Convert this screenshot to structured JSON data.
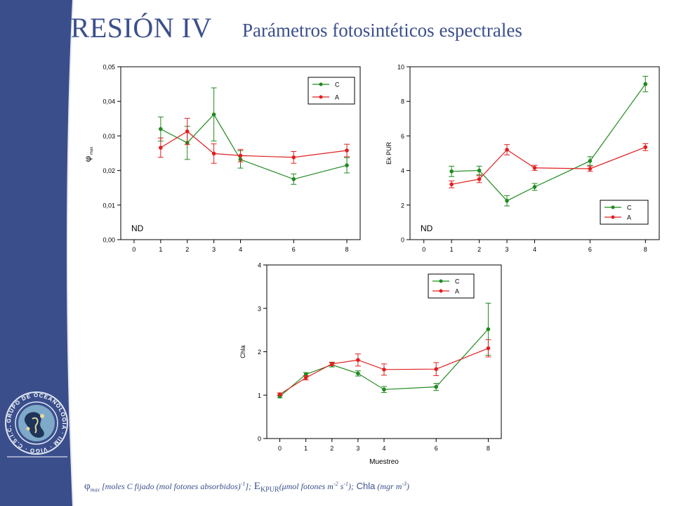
{
  "header": {
    "title": "IMPRESIÓN IV",
    "subtitle": "Parámetros fotosintéticos espectrales"
  },
  "logo": {
    "ring_text": "GRUPO DE OCEANOLOGIA · IIM · VIGO · C.S.I.C."
  },
  "footnote": {
    "phi_label": "φ",
    "phi_sub": "max",
    "phi_unit": " [moles C fijado (mol fotones absorbidos)",
    "phi_sup": "-1",
    "phi_close": "];",
    "ek_label": " E",
    "ek_sub": "KPUR",
    "ek_unit": "(μmol fotones m",
    "ek_sup1": "-2",
    "ek_mid": " s",
    "ek_sup2": "-1",
    "ek_close": ");",
    "chla_label": " Chla",
    "chla_unit": " (mgr m",
    "chla_sup": "-3",
    "chla_close": ")"
  },
  "colors": {
    "title": "#3b4f8c",
    "sidebar": "#3a4e8c",
    "series_c": "#1f8a1f",
    "series_a": "#e02020"
  },
  "chart_data": [
    {
      "type": "line",
      "title": "",
      "xlabel": "",
      "ylabel": "φ max",
      "xlim": [
        -0.5,
        8.5
      ],
      "ylim": [
        0,
        0.05
      ],
      "xticks": [
        0,
        1,
        2,
        3,
        4,
        6,
        8
      ],
      "yticks": [
        0,
        0.01,
        0.02,
        0.03,
        0.04,
        0.05
      ],
      "ytick_labels": [
        "0,00",
        "0,01",
        "0,02",
        "0,03",
        "0,04",
        "0,05"
      ],
      "grid": false,
      "legend": "top-right",
      "annotation": "ND",
      "series": [
        {
          "name": "C",
          "x": [
            1,
            2,
            3,
            4,
            6,
            8
          ],
          "y": [
            0.032,
            0.028,
            0.0362,
            0.0232,
            0.0175,
            0.0215
          ],
          "err": [
            0.0035,
            0.0048,
            0.0077,
            0.0025,
            0.0015,
            0.0022
          ]
        },
        {
          "name": "A",
          "x": [
            1,
            2,
            3,
            4,
            6,
            8
          ],
          "y": [
            0.0266,
            0.0313,
            0.0249,
            0.0243,
            0.0238,
            0.0258
          ],
          "err": [
            0.0028,
            0.0038,
            0.0028,
            0.0018,
            0.0017,
            0.0018
          ]
        }
      ]
    },
    {
      "type": "line",
      "title": "",
      "xlabel": "",
      "ylabel": "Ek PUR",
      "xlim": [
        -0.5,
        8.5
      ],
      "ylim": [
        0,
        10
      ],
      "xticks": [
        0,
        1,
        2,
        3,
        4,
        6,
        8
      ],
      "yticks": [
        0,
        2,
        4,
        6,
        8,
        10
      ],
      "ytick_labels": [
        "0",
        "2",
        "4",
        "6",
        "8",
        "10"
      ],
      "grid": false,
      "legend": "bottom-right",
      "annotation": "ND",
      "series": [
        {
          "name": "C",
          "x": [
            1,
            2,
            3,
            4,
            6,
            8
          ],
          "y": [
            3.95,
            4.0,
            2.25,
            3.05,
            4.55,
            9.0
          ],
          "err": [
            0.3,
            0.25,
            0.3,
            0.2,
            0.25,
            0.45
          ]
        },
        {
          "name": "A",
          "x": [
            1,
            2,
            3,
            4,
            6,
            8
          ],
          "y": [
            3.2,
            3.5,
            5.2,
            4.15,
            4.1,
            5.35
          ],
          "err": [
            0.2,
            0.2,
            0.3,
            0.15,
            0.15,
            0.2
          ]
        }
      ]
    },
    {
      "type": "line",
      "title": "",
      "xlabel": "Muestreo",
      "ylabel": "Chla",
      "xlim": [
        -0.5,
        8.5
      ],
      "ylim": [
        0,
        4
      ],
      "xticks": [
        0,
        1,
        2,
        3,
        4,
        6,
        8
      ],
      "yticks": [
        0,
        1,
        2,
        3,
        4
      ],
      "ytick_labels": [
        "0",
        "1",
        "2",
        "3",
        "4"
      ],
      "grid": false,
      "legend": "top-right",
      "annotation": "",
      "series": [
        {
          "name": "C",
          "x": [
            0,
            1,
            2,
            3,
            4,
            6,
            8
          ],
          "y": [
            0.97,
            1.48,
            1.7,
            1.5,
            1.13,
            1.19,
            2.52
          ],
          "err": [
            0.03,
            0.04,
            0.05,
            0.06,
            0.07,
            0.08,
            0.6
          ]
        },
        {
          "name": "A",
          "x": [
            0,
            1,
            2,
            3,
            4,
            6,
            8
          ],
          "y": [
            1.02,
            1.4,
            1.72,
            1.81,
            1.59,
            1.6,
            2.08
          ],
          "err": [
            0.03,
            0.05,
            0.04,
            0.14,
            0.13,
            0.15,
            0.2
          ]
        }
      ]
    }
  ]
}
